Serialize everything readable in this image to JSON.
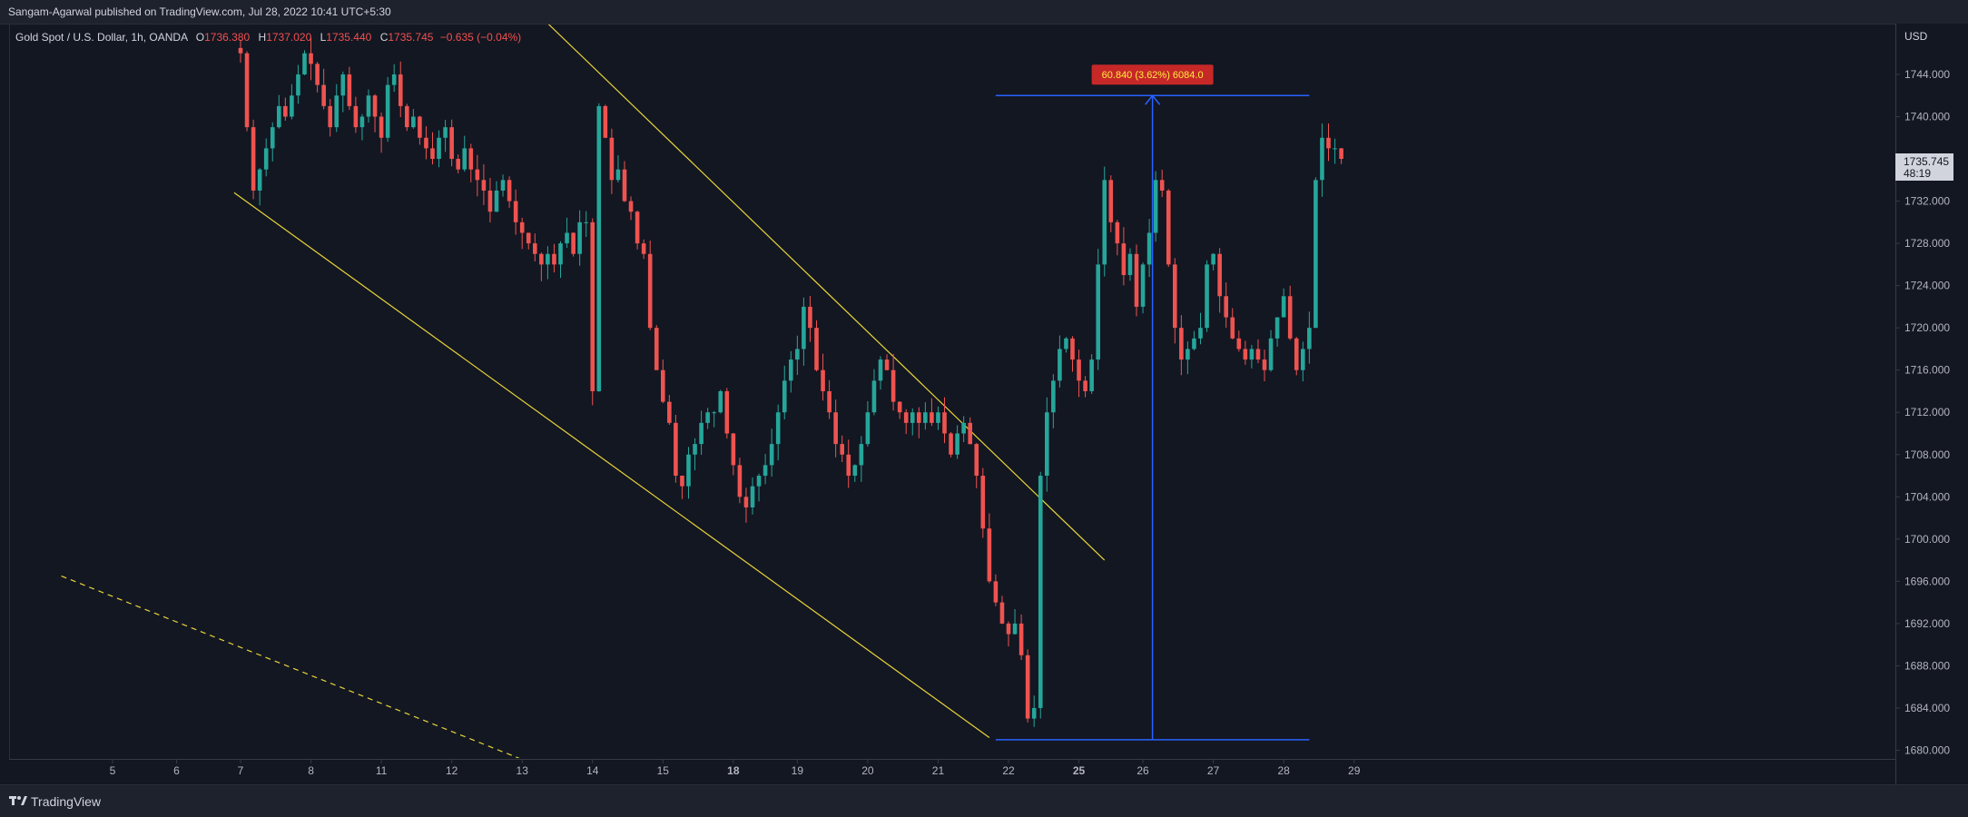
{
  "header": {
    "published": "Sangam-Agarwal published on TradingView.com, Jul 28, 2022 10:41 UTC+5:30"
  },
  "legend": {
    "symbol": "Gold Spot / U.S. Dollar, 1h, OANDA",
    "open_key": "O",
    "open": "1736.380",
    "high_key": "H",
    "high": "1737.020",
    "low_key": "L",
    "low": "1735.440",
    "close_key": "C",
    "close": "1735.745",
    "change": "−0.635 (−0.04%)"
  },
  "footer": {
    "brand": "TradingView"
  },
  "colors": {
    "up": "#26a69a",
    "down": "#ef5350",
    "trend": "#e8d43a",
    "measure": "#2962ff",
    "price_tag_bg": "#d1d4dc",
    "badge": "#c62828"
  },
  "chart_data": {
    "type": "candlestick",
    "currency": "USD",
    "ylim": [
      1670,
      1747
    ],
    "y_ticks": [
      1744,
      1740,
      1736,
      1732,
      1728,
      1724,
      1720,
      1716,
      1712,
      1708,
      1704,
      1700,
      1696,
      1692,
      1688,
      1684,
      1680,
      1676,
      1672
    ],
    "x_ticks": [
      {
        "label": "5",
        "i": -20,
        "bold": false
      },
      {
        "label": "6",
        "i": -10,
        "bold": false
      },
      {
        "label": "7",
        "i": 0,
        "bold": false
      },
      {
        "label": "8",
        "i": 11,
        "bold": false
      },
      {
        "label": "11",
        "i": 22,
        "bold": false
      },
      {
        "label": "12",
        "i": 33,
        "bold": false
      },
      {
        "label": "13",
        "i": 44,
        "bold": false
      },
      {
        "label": "14",
        "i": 55,
        "bold": false
      },
      {
        "label": "15",
        "i": 66,
        "bold": false
      },
      {
        "label": "18",
        "i": 77,
        "bold": true
      },
      {
        "label": "19",
        "i": 87,
        "bold": false
      },
      {
        "label": "20",
        "i": 98,
        "bold": false
      },
      {
        "label": "21",
        "i": 109,
        "bold": false
      },
      {
        "label": "22",
        "i": 120,
        "bold": false
      },
      {
        "label": "25",
        "i": 131,
        "bold": true
      },
      {
        "label": "26",
        "i": 141,
        "bold": false
      },
      {
        "label": "27",
        "i": 152,
        "bold": false
      },
      {
        "label": "28",
        "i": 163,
        "bold": false
      },
      {
        "label": "29",
        "i": 174,
        "bold": false
      }
    ],
    "last_price": "1735.745",
    "countdown": "48:19",
    "measure_label": "60.840 (3.62%) 6084.0",
    "measure": {
      "i1": 118,
      "i2": 167,
      "p_low": 1681,
      "p_high": 1742
    },
    "trendlines": [
      {
        "i1": -1,
        "p1": 1732.8,
        "i2": 117,
        "p2": 1681.2,
        "style": "solid"
      },
      {
        "i1": 46,
        "p1": 1750,
        "i2": 135,
        "p2": 1698,
        "style": "solid"
      },
      {
        "i1": -28,
        "p1": 1696.5,
        "i2": 81,
        "p2": 1670.2,
        "style": "dashed"
      }
    ],
    "closes": [
      1746,
      1739,
      1733,
      1735,
      1737,
      1739,
      1741,
      1740,
      1742,
      1744,
      1746,
      1745,
      1743,
      1741,
      1739,
      1742,
      1744,
      1741,
      1739,
      1740,
      1742,
      1740,
      1738,
      1743,
      1744,
      1741,
      1739,
      1740,
      1738,
      1737,
      1736,
      1738,
      1739,
      1736,
      1735,
      1737,
      1735,
      1734,
      1733,
      1731,
      1733,
      1734,
      1732,
      1730,
      1729,
      1728,
      1727,
      1726,
      1727,
      1726,
      1728,
      1729,
      1727,
      1730,
      1730,
      1714,
      1741,
      1738,
      1734,
      1735,
      1732,
      1731,
      1728,
      1727,
      1720,
      1716,
      1713,
      1711,
      1706,
      1705,
      1708,
      1709,
      1711,
      1712,
      1712,
      1714,
      1710,
      1707,
      1704,
      1703,
      1705,
      1706,
      1707,
      1709,
      1712,
      1715,
      1717,
      1718,
      1722,
      1720,
      1716,
      1714,
      1712,
      1709,
      1708,
      1706,
      1707,
      1709,
      1712,
      1715,
      1717,
      1716,
      1713,
      1712,
      1711,
      1712,
      1711,
      1712,
      1711,
      1712,
      1710,
      1708,
      1710,
      1711,
      1709,
      1706,
      1701,
      1696,
      1694,
      1692,
      1691,
      1692,
      1689,
      1683,
      1684,
      1706,
      1712,
      1715,
      1718,
      1719,
      1717,
      1715,
      1714,
      1717,
      1726,
      1734,
      1730,
      1728,
      1725,
      1727,
      1722,
      1726,
      1729,
      1734,
      1733,
      1726,
      1720,
      1717,
      1718,
      1719,
      1720,
      1726,
      1727,
      1723,
      1721,
      1719,
      1718,
      1717,
      1718,
      1717,
      1716,
      1719,
      1721,
      1723,
      1719,
      1716,
      1718,
      1720,
      1734,
      1738,
      1737,
      1737,
      1736
    ]
  }
}
